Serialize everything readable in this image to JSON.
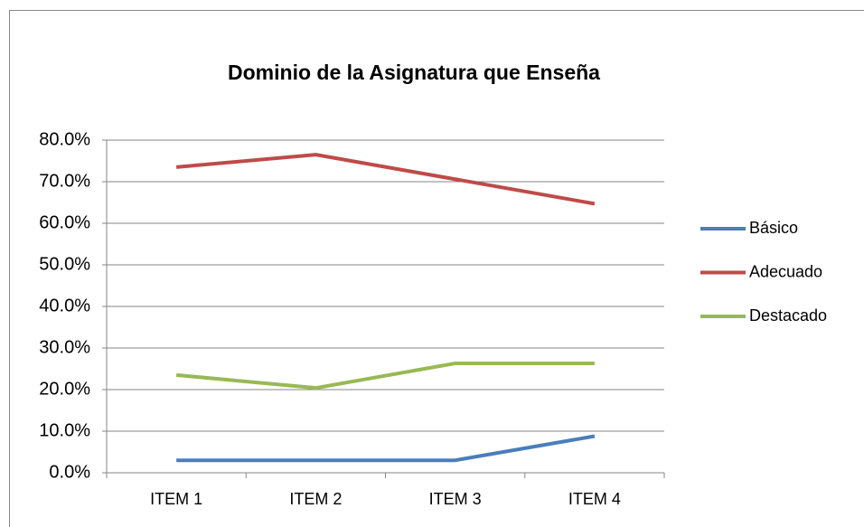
{
  "chart_data": {
    "type": "line",
    "title": "Dominio de la Asignatura que Enseña",
    "categories": [
      "ITEM 1",
      "ITEM 2",
      "ITEM 3",
      "ITEM 4"
    ],
    "series": [
      {
        "name": "Básico",
        "color": "#4a7ebb",
        "values": [
          3.0,
          3.0,
          3.0,
          8.8
        ]
      },
      {
        "name": "Adecuado",
        "color": "#be4b48",
        "values": [
          73.5,
          76.5,
          70.6,
          64.7
        ]
      },
      {
        "name": "Destacado",
        "color": "#98b954",
        "values": [
          23.5,
          20.4,
          26.3,
          26.3
        ]
      }
    ],
    "ylim": [
      0,
      80
    ],
    "yticks": [
      {
        "value": 0,
        "label": "0.0%"
      },
      {
        "value": 10,
        "label": "10.0%"
      },
      {
        "value": 20,
        "label": "20.0%"
      },
      {
        "value": 30,
        "label": "30.0%"
      },
      {
        "value": 40,
        "label": "40.0%"
      },
      {
        "value": 50,
        "label": "50.0%"
      },
      {
        "value": 60,
        "label": "60.0%"
      },
      {
        "value": 70,
        "label": "70.0%"
      },
      {
        "value": 80,
        "label": "80.0%"
      }
    ],
    "grid": true,
    "legend": "right"
  }
}
